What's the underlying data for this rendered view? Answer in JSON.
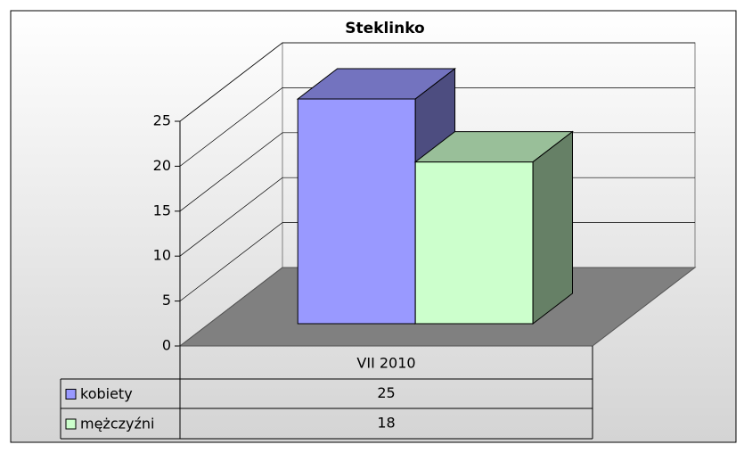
{
  "chart_data": {
    "type": "bar3d",
    "title": "Steklinko",
    "categories": [
      "VII 2010"
    ],
    "series": [
      {
        "name": "kobiety",
        "color": "#9999ff",
        "values": [
          25
        ]
      },
      {
        "name": "mężczyźni",
        "color": "#ccffcc",
        "values": [
          18
        ]
      }
    ],
    "ylim": [
      0,
      25
    ],
    "yticks": [
      0,
      5,
      10,
      15,
      20,
      25
    ],
    "grid": true,
    "data_table": true
  }
}
